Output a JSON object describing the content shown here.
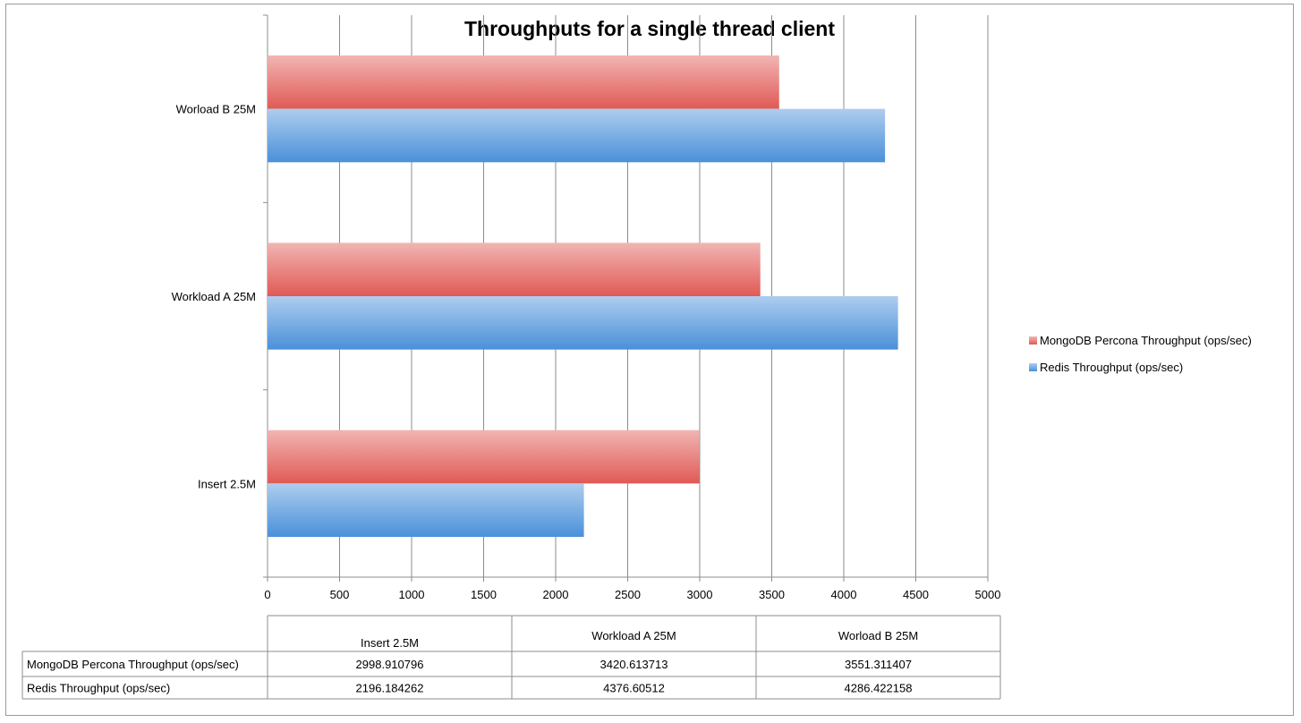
{
  "chart_data": {
    "type": "bar",
    "orientation": "horizontal",
    "title": "Throughputs for a single thread client",
    "xlabel": "",
    "ylabel": "",
    "categories": [
      "Insert 2.5M",
      "Workload A 25M",
      "Worload B 25M"
    ],
    "series": [
      {
        "name": "MongoDB Percona Throughput (ops/sec)",
        "color": "#e05a55",
        "values": [
          2998.910796,
          3420.613713,
          3551.311407
        ],
        "value_labels": [
          "2998.910796",
          "3420.613713",
          "3551.311407"
        ]
      },
      {
        "name": "Redis Throughput (ops/sec)",
        "color": "#4a90d9",
        "values": [
          2196.184262,
          4376.60512,
          4286.422158
        ],
        "value_labels": [
          "2196.184262",
          "4376.60512",
          "4286.422158"
        ]
      }
    ],
    "xlim": [
      0,
      5000
    ],
    "xticks": [
      0,
      500,
      1000,
      1500,
      2000,
      2500,
      3000,
      3500,
      4000,
      4500,
      5000
    ],
    "grid": true,
    "legend": "right",
    "data_table": true
  }
}
